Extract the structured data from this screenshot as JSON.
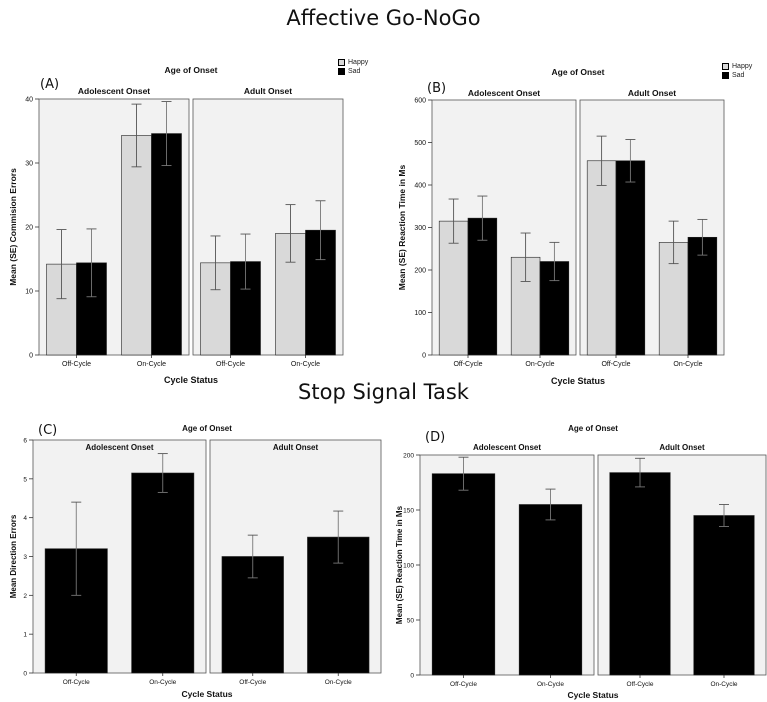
{
  "titles": {
    "top": "Affective Go-NoGo",
    "bottom": "Stop Signal Task"
  },
  "legend": [
    {
      "name": "Happy",
      "color": "#d9d9d9"
    },
    {
      "name": "Sad",
      "color": "#000000"
    }
  ],
  "chart_data": [
    {
      "id": "A",
      "type": "bar",
      "panel_label": "(A)",
      "facet_title": "Age of Onset",
      "facets": [
        "Adolescent Onset",
        "Adult Onset"
      ],
      "categories": [
        "Off-Cycle",
        "On-Cycle"
      ],
      "xlabel": "Cycle Status",
      "ylabel": "Mean (SE) Commision Errors",
      "ylim": [
        0,
        40
      ],
      "yticks": [
        0,
        10,
        20,
        30,
        40
      ],
      "series": [
        {
          "name": "Happy",
          "color": "#d9d9d9",
          "values": [
            [
              14.2,
              34.3
            ],
            [
              14.4,
              19.0
            ]
          ],
          "errors": [
            [
              5.4,
              4.9
            ],
            [
              4.2,
              4.5
            ]
          ]
        },
        {
          "name": "Sad",
          "color": "#000000",
          "values": [
            [
              14.4,
              34.6
            ],
            [
              14.6,
              19.5
            ]
          ],
          "errors": [
            [
              5.3,
              5.0
            ],
            [
              4.3,
              4.6
            ]
          ]
        }
      ]
    },
    {
      "id": "B",
      "type": "bar",
      "panel_label": "(B)",
      "facet_title": "Age of Onset",
      "facets": [
        "Adolescent Onset",
        "Adult Onset"
      ],
      "categories": [
        "Off-Cycle",
        "On-Cycle"
      ],
      "xlabel": "Cycle Status",
      "ylabel": "Mean (SE) Reaction Time in Ms",
      "ylim": [
        0,
        600
      ],
      "yticks": [
        0,
        100,
        200,
        300,
        400,
        500,
        600
      ],
      "series": [
        {
          "name": "Happy",
          "color": "#d9d9d9",
          "values": [
            [
              315,
              230
            ],
            [
              457,
              265
            ]
          ],
          "errors": [
            [
              52,
              57
            ],
            [
              58,
              50
            ]
          ]
        },
        {
          "name": "Sad",
          "color": "#000000",
          "values": [
            [
              322,
              220
            ],
            [
              457,
              277
            ]
          ],
          "errors": [
            [
              52,
              45
            ],
            [
              50,
              42
            ]
          ]
        }
      ]
    },
    {
      "id": "C",
      "type": "bar",
      "panel_label": "(C)",
      "facet_title": "Age of Onset",
      "facets": [
        "Adolescent Onset",
        "Adult Onset"
      ],
      "categories": [
        "Off-Cycle",
        "On-Cycle"
      ],
      "xlabel": "Cycle Status",
      "ylabel": "Mean Direction Errors",
      "ylim": [
        0,
        6
      ],
      "yticks": [
        0,
        1,
        2,
        3,
        4,
        5,
        6
      ],
      "series": [
        {
          "name": "",
          "color": "#000000",
          "values": [
            [
              3.2,
              5.15
            ],
            [
              3.0,
              3.5
            ]
          ],
          "errors": [
            [
              1.2,
              0.5
            ],
            [
              0.55,
              0.67
            ]
          ]
        }
      ]
    },
    {
      "id": "D",
      "type": "bar",
      "panel_label": "(D)",
      "facet_title": "Age of Onset",
      "facets": [
        "Adolescent Onset",
        "Adult Onset"
      ],
      "categories": [
        "Off-Cycle",
        "On-Cycle"
      ],
      "xlabel": "Cycle Status",
      "ylabel": "Mean (SE) Reaction Time in Ms",
      "ylim": [
        0,
        200
      ],
      "yticks": [
        0,
        50,
        100,
        150,
        200
      ],
      "series": [
        {
          "name": "",
          "color": "#000000",
          "values": [
            [
              183,
              155
            ],
            [
              184,
              145
            ]
          ],
          "errors": [
            [
              15,
              14
            ],
            [
              13,
              10
            ]
          ]
        }
      ]
    }
  ]
}
